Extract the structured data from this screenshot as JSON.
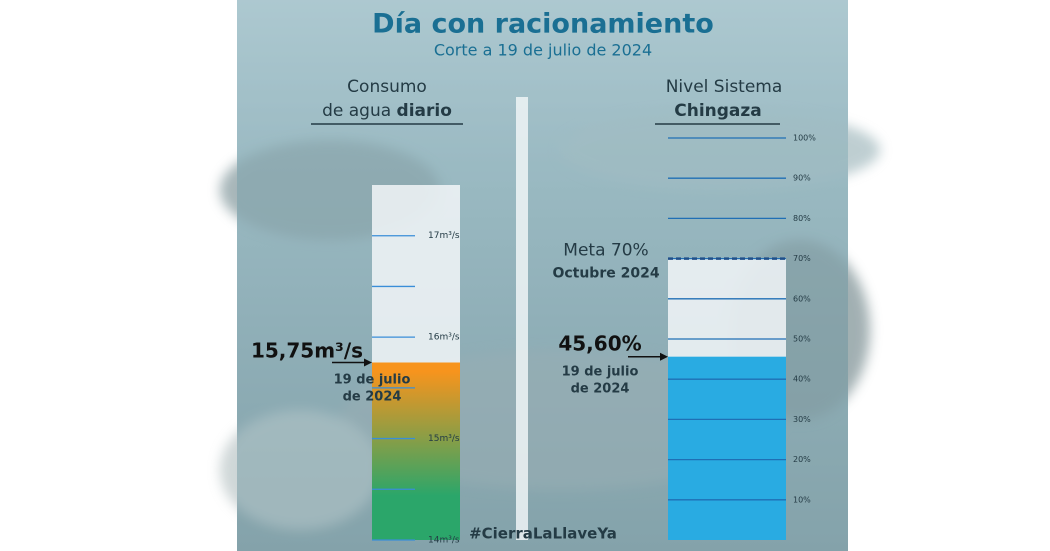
{
  "header": {
    "title": "Día con racionamiento",
    "subtitle": "Corte a 19 de julio de 2024"
  },
  "hashtag": "#CierraLaLlaveYa",
  "chart_data": [
    {
      "type": "bar",
      "title_lines": [
        "Consumo",
        "de agua"
      ],
      "title_bold": "diario",
      "values": [
        15.75
      ],
      "value_labels": [
        "15,75m³/s"
      ],
      "annotation_lines": [
        "19 de julio",
        "de 2024"
      ],
      "colors": [
        "#f7941d",
        "#2ba66a"
      ],
      "line_color": "#3a8ed8",
      "ylim": [
        14,
        17.5
      ],
      "yticks": [
        {
          "value": 14,
          "label": "14m³/s"
        },
        {
          "value": 15,
          "label": "15m³/s"
        },
        {
          "value": 16,
          "label": "16m³/s"
        },
        {
          "value": 17,
          "label": "17m³/s"
        }
      ],
      "minor_yticks": [
        14.5,
        15.5,
        16.5
      ]
    },
    {
      "type": "bar",
      "title_lines": [
        "Nivel Sistema"
      ],
      "title_bold": "Chingaza",
      "values": [
        45.6
      ],
      "value_labels": [
        "45,60%"
      ],
      "annotation_lines": [
        "19 de julio",
        "de 2024"
      ],
      "colors": [
        "#29abe2"
      ],
      "line_color": "#1f6fb5",
      "target": 70,
      "target_label": "Meta 70%",
      "target_note": "Octubre 2024",
      "ylim": [
        0,
        100
      ],
      "yticks": [
        {
          "value": 10,
          "label": "10%"
        },
        {
          "value": 20,
          "label": "20%"
        },
        {
          "value": 30,
          "label": "30%"
        },
        {
          "value": 40,
          "label": "40%"
        },
        {
          "value": 50,
          "label": "50%"
        },
        {
          "value": 60,
          "label": "60%"
        },
        {
          "value": 70,
          "label": "70%"
        },
        {
          "value": 80,
          "label": "80%"
        },
        {
          "value": 90,
          "label": "90%"
        },
        {
          "value": 100,
          "label": "100%"
        }
      ]
    }
  ]
}
